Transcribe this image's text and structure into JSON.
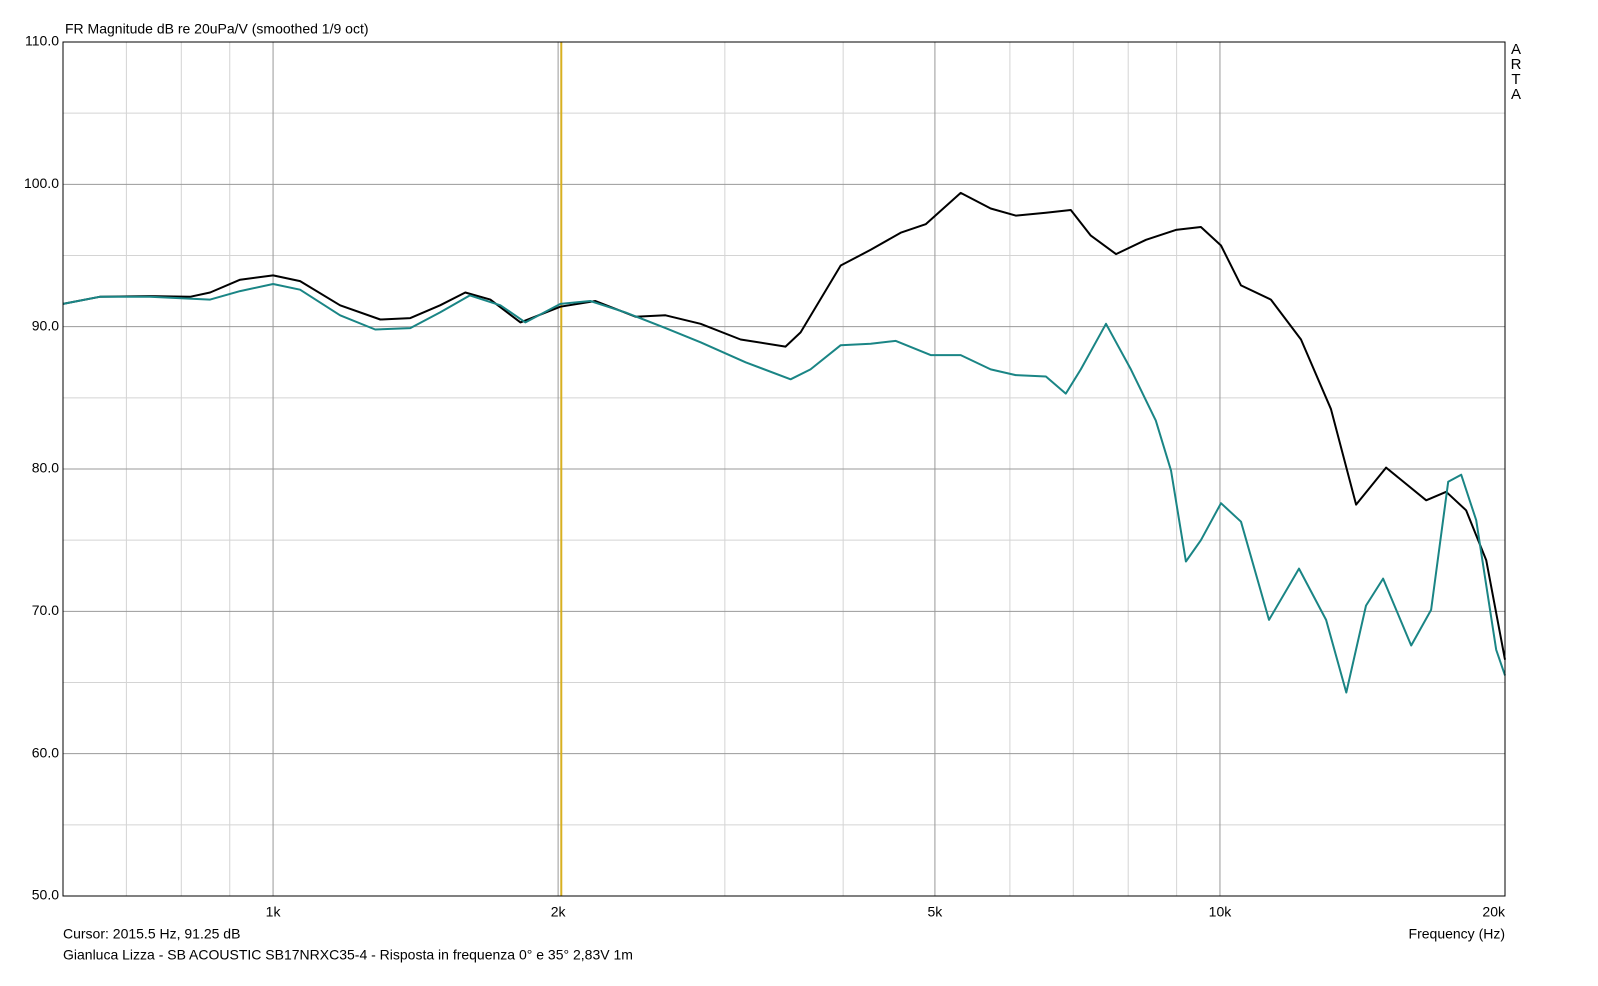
{
  "chart_data": {
    "type": "line",
    "title": "FR Magnitude dB re 20uPa/V (smoothed 1/9 oct)",
    "brand": "ARTA",
    "x_label": "Frequency (Hz)",
    "cursor": {
      "label": "Cursor: 2015.5 Hz, 91.25 dB",
      "x": 2015.5,
      "color": "#d8b020"
    },
    "footer": "Gianluca Lizza - SB ACOUSTIC SB17NRXC35-4 - Risposta in frequenza 0° e 35° 2,83V 1m",
    "log_x": true,
    "grid": true,
    "xlim": [
      600,
      20000
    ],
    "xticks": [
      {
        "value": 1000,
        "label": "1k"
      },
      {
        "value": 2000,
        "label": "2k"
      },
      {
        "value": 5000,
        "label": "5k"
      },
      {
        "value": 10000,
        "label": "10k"
      },
      {
        "value": 20000,
        "label": "20k"
      }
    ],
    "xminor": [
      700,
      800,
      900,
      3000,
      4000,
      6000,
      7000,
      8000,
      9000
    ],
    "ylim": [
      50,
      110
    ],
    "yticks": [
      {
        "value": 50,
        "label": "50.0"
      },
      {
        "value": 60,
        "label": "60.0"
      },
      {
        "value": 70,
        "label": "70.0"
      },
      {
        "value": 80,
        "label": "80.0"
      },
      {
        "value": 90,
        "label": "90.0"
      },
      {
        "value": 100,
        "label": "100.0"
      },
      {
        "value": 110,
        "label": "110.0"
      }
    ],
    "yminor": [
      55,
      65,
      75,
      85,
      95,
      105
    ],
    "series": [
      {
        "color": "#000000",
        "x": [
          600,
          656,
          741,
          817,
          858,
          923,
          1000,
          1068,
          1177,
          1298,
          1396,
          1501,
          1596,
          1696,
          1825,
          2011,
          2190,
          2414,
          2597,
          2828,
          3117,
          3477,
          3607,
          3976,
          4277,
          4601,
          4889,
          5323,
          5727,
          6085,
          6549,
          6958,
          7305,
          7766,
          8353,
          8985,
          9548,
          10025,
          10524,
          11320,
          12178,
          13100,
          13924,
          14980,
          16513,
          17335,
          18197,
          19105,
          20000
        ],
        "values": [
          91.6,
          92.1,
          92.15,
          92.1,
          92.4,
          93.3,
          93.6,
          93.2,
          91.5,
          90.5,
          90.6,
          91.5,
          92.4,
          91.9,
          90.3,
          91.4,
          91.8,
          90.7,
          90.8,
          90.2,
          89.1,
          88.6,
          89.6,
          94.3,
          95.4,
          96.6,
          97.2,
          99.4,
          98.3,
          97.8,
          98.0,
          98.2,
          96.4,
          95.1,
          96.1,
          96.8,
          97.0,
          95.7,
          92.9,
          91.9,
          89.1,
          84.2,
          77.5,
          80.1,
          77.8,
          78.4,
          77.1,
          73.6,
          66.6
        ]
      },
      {
        "color": "#1a8585",
        "x": [
          600,
          656,
          741,
          858,
          923,
          1000,
          1068,
          1177,
          1282,
          1396,
          1501,
          1614,
          1738,
          1847,
          2011,
          2163,
          2356,
          2597,
          2828,
          3155,
          3520,
          3695,
          3976,
          4277,
          4546,
          4949,
          5323,
          5727,
          6085,
          6549,
          6874,
          7130,
          7579,
          8053,
          8556,
          8877,
          9206,
          9548,
          10025,
          10524,
          11266,
          12119,
          12944,
          13596,
          14264,
          14869,
          15920,
          16710,
          17418,
          17980,
          18645,
          19578,
          20000
        ],
        "values": [
          91.6,
          92.1,
          92.1,
          91.9,
          92.5,
          93.0,
          92.6,
          90.8,
          89.8,
          89.9,
          91.0,
          92.2,
          91.5,
          90.3,
          91.6,
          91.8,
          91.0,
          89.9,
          88.9,
          87.5,
          86.3,
          87.0,
          88.7,
          88.8,
          89.0,
          88.0,
          88.0,
          87.0,
          86.6,
          86.5,
          85.3,
          87.0,
          90.2,
          87.0,
          83.4,
          79.9,
          73.5,
          75.0,
          77.6,
          76.3,
          69.4,
          73.0,
          69.4,
          64.3,
          70.4,
          72.3,
          67.6,
          70.1,
          79.1,
          79.6,
          76.4,
          67.3,
          65.5
        ]
      }
    ]
  }
}
